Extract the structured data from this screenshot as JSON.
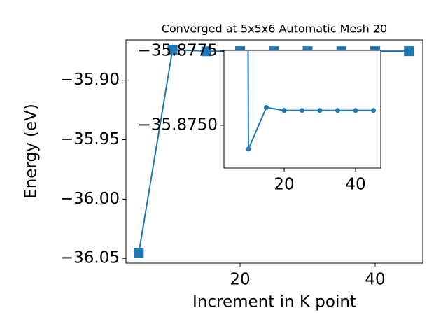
{
  "chart_data": {
    "type": "line",
    "title": "Converged at 5x5x6 Automatic Mesh 20",
    "xlabel": "Increment in K point",
    "ylabel": "Energy (eV)",
    "x": [
      5,
      10,
      15,
      20,
      25,
      30,
      35,
      40,
      45
    ],
    "series": [
      {
        "color": "#1f77b4",
        "marker": "square",
        "values": [
          -36.0453,
          -35.8742,
          -35.8756,
          -35.8755,
          -35.8755,
          -35.8755,
          -35.8755,
          -35.8755,
          -35.8755
        ]
      }
    ],
    "xlim": [
      3.1,
      47.05
    ],
    "ylim": [
      -36.054,
      -35.866
    ],
    "xticks": [
      20,
      40
    ],
    "yticks": [
      {
        "value": -35.9,
        "label": "−35.90"
      },
      {
        "value": -35.95,
        "label": "−35.95"
      },
      {
        "value": -36.0,
        "label": "−36.00"
      },
      {
        "value": -36.05,
        "label": "−36.05"
      }
    ],
    "inset": {
      "marker": "circle",
      "xlim": [
        3.14,
        47.06
      ],
      "ylim": [
        -35.87356,
        -35.87752
      ],
      "xticks": [
        20,
        40
      ],
      "yticks": [
        {
          "value": -35.8775,
          "label": "−35.8775"
        },
        {
          "value": -35.875,
          "label": "−35.8750"
        }
      ]
    }
  }
}
